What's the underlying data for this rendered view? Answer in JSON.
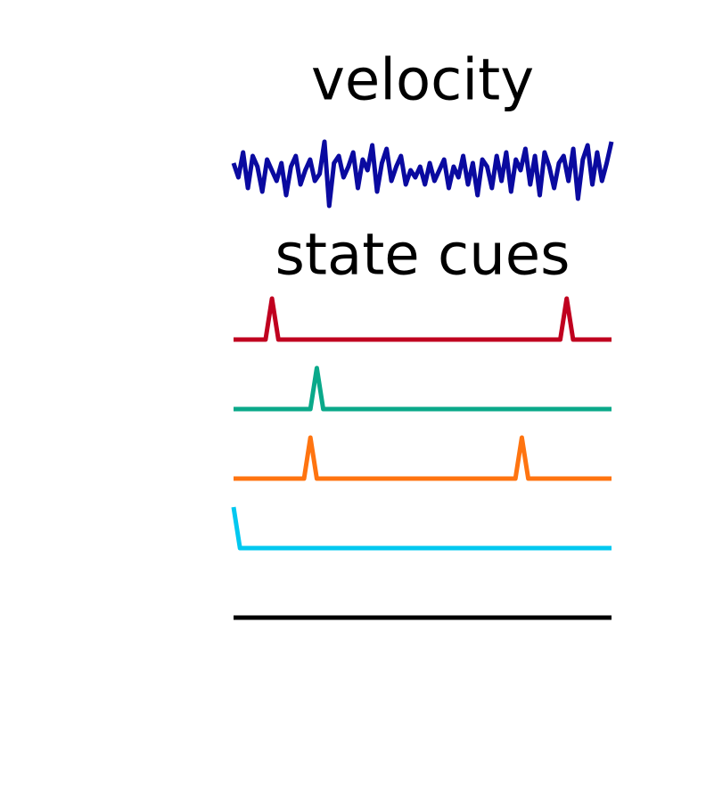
{
  "chart_data": [
    {
      "type": "line",
      "title": "velocity",
      "color": "#0a0aa0",
      "ylim": [
        -1,
        1
      ],
      "values": [
        0.3,
        -0.1,
        0.6,
        -0.4,
        0.5,
        0.2,
        -0.5,
        0.4,
        0.1,
        -0.2,
        0.3,
        -0.6,
        0.2,
        0.5,
        -0.3,
        0.1,
        0.4,
        -0.2,
        0.0,
        0.9,
        -0.9,
        0.3,
        0.5,
        -0.1,
        0.2,
        0.6,
        -0.4,
        0.4,
        0.1,
        0.8,
        -0.5,
        0.3,
        0.7,
        -0.2,
        0.2,
        0.5,
        -0.3,
        0.1,
        -0.1,
        0.2,
        -0.3,
        0.3,
        -0.2,
        0.1,
        0.4,
        -0.4,
        0.2,
        -0.1,
        0.5,
        -0.3,
        0.3,
        -0.6,
        0.4,
        0.2,
        -0.4,
        0.5,
        -0.2,
        0.6,
        -0.5,
        0.4,
        0.1,
        0.7,
        -0.3,
        0.5,
        -0.6,
        0.6,
        0.2,
        -0.4,
        0.3,
        0.5,
        -0.2,
        0.7,
        -0.7,
        0.4,
        0.8,
        -0.3,
        0.6,
        -0.2,
        0.3,
        0.9
      ]
    },
    {
      "type": "line",
      "title": "state cues",
      "ylim": [
        0,
        1
      ],
      "series": [
        {
          "color": "#c0001f",
          "values": [
            0,
            0,
            0,
            0,
            0,
            0,
            1,
            0,
            0,
            0,
            0,
            0,
            0,
            0,
            0,
            0,
            0,
            0,
            0,
            0,
            0,
            0,
            0,
            0,
            0,
            0,
            0,
            0,
            0,
            0,
            0,
            0,
            0,
            0,
            0,
            0,
            0,
            0,
            0,
            0,
            0,
            0,
            0,
            0,
            0,
            0,
            0,
            0,
            0,
            0,
            0,
            0,
            1,
            0,
            0,
            0,
            0,
            0,
            0,
            0
          ]
        },
        {
          "color": "#0aa98a",
          "values": [
            0,
            0,
            0,
            0,
            0,
            0,
            0,
            0,
            0,
            0,
            0,
            0,
            0,
            1,
            0,
            0,
            0,
            0,
            0,
            0,
            0,
            0,
            0,
            0,
            0,
            0,
            0,
            0,
            0,
            0,
            0,
            0,
            0,
            0,
            0,
            0,
            0,
            0,
            0,
            0,
            0,
            0,
            0,
            0,
            0,
            0,
            0,
            0,
            0,
            0,
            0,
            0,
            0,
            0,
            0,
            0,
            0,
            0,
            0,
            0
          ]
        },
        {
          "color": "#ff7410",
          "values": [
            0,
            0,
            0,
            0,
            0,
            0,
            0,
            0,
            0,
            0,
            0,
            0,
            1,
            0,
            0,
            0,
            0,
            0,
            0,
            0,
            0,
            0,
            0,
            0,
            0,
            0,
            0,
            0,
            0,
            0,
            0,
            0,
            0,
            0,
            0,
            0,
            0,
            0,
            0,
            0,
            0,
            0,
            0,
            0,
            0,
            1,
            0,
            0,
            0,
            0,
            0,
            0,
            0,
            0,
            0,
            0,
            0,
            0,
            0,
            0
          ]
        },
        {
          "color": "#00c8f0",
          "values": [
            1,
            0,
            0,
            0,
            0,
            0,
            0,
            0,
            0,
            0,
            0,
            0,
            0,
            0,
            0,
            0,
            0,
            0,
            0,
            0,
            0,
            0,
            0,
            0,
            0,
            0,
            0,
            0,
            0,
            0,
            0,
            0,
            0,
            0,
            0,
            0,
            0,
            0,
            0,
            0,
            0,
            0,
            0,
            0,
            0,
            0,
            0,
            0,
            0,
            0,
            0,
            0,
            0,
            0,
            0,
            0,
            0,
            0,
            0,
            0
          ]
        },
        {
          "color": "#000000",
          "values": [
            0,
            0,
            0,
            0,
            0,
            0,
            0,
            0,
            0,
            0,
            0,
            0,
            0,
            0,
            0,
            0,
            0,
            0,
            0,
            0,
            0,
            0,
            0,
            0,
            0,
            0,
            0,
            0,
            0,
            0,
            0,
            0,
            0,
            0,
            0,
            0,
            0,
            0,
            0,
            0,
            0,
            0,
            0,
            0,
            0,
            0,
            0,
            0,
            0,
            0,
            0,
            0,
            0,
            0,
            0,
            0,
            0,
            0,
            0,
            0
          ]
        }
      ]
    }
  ]
}
